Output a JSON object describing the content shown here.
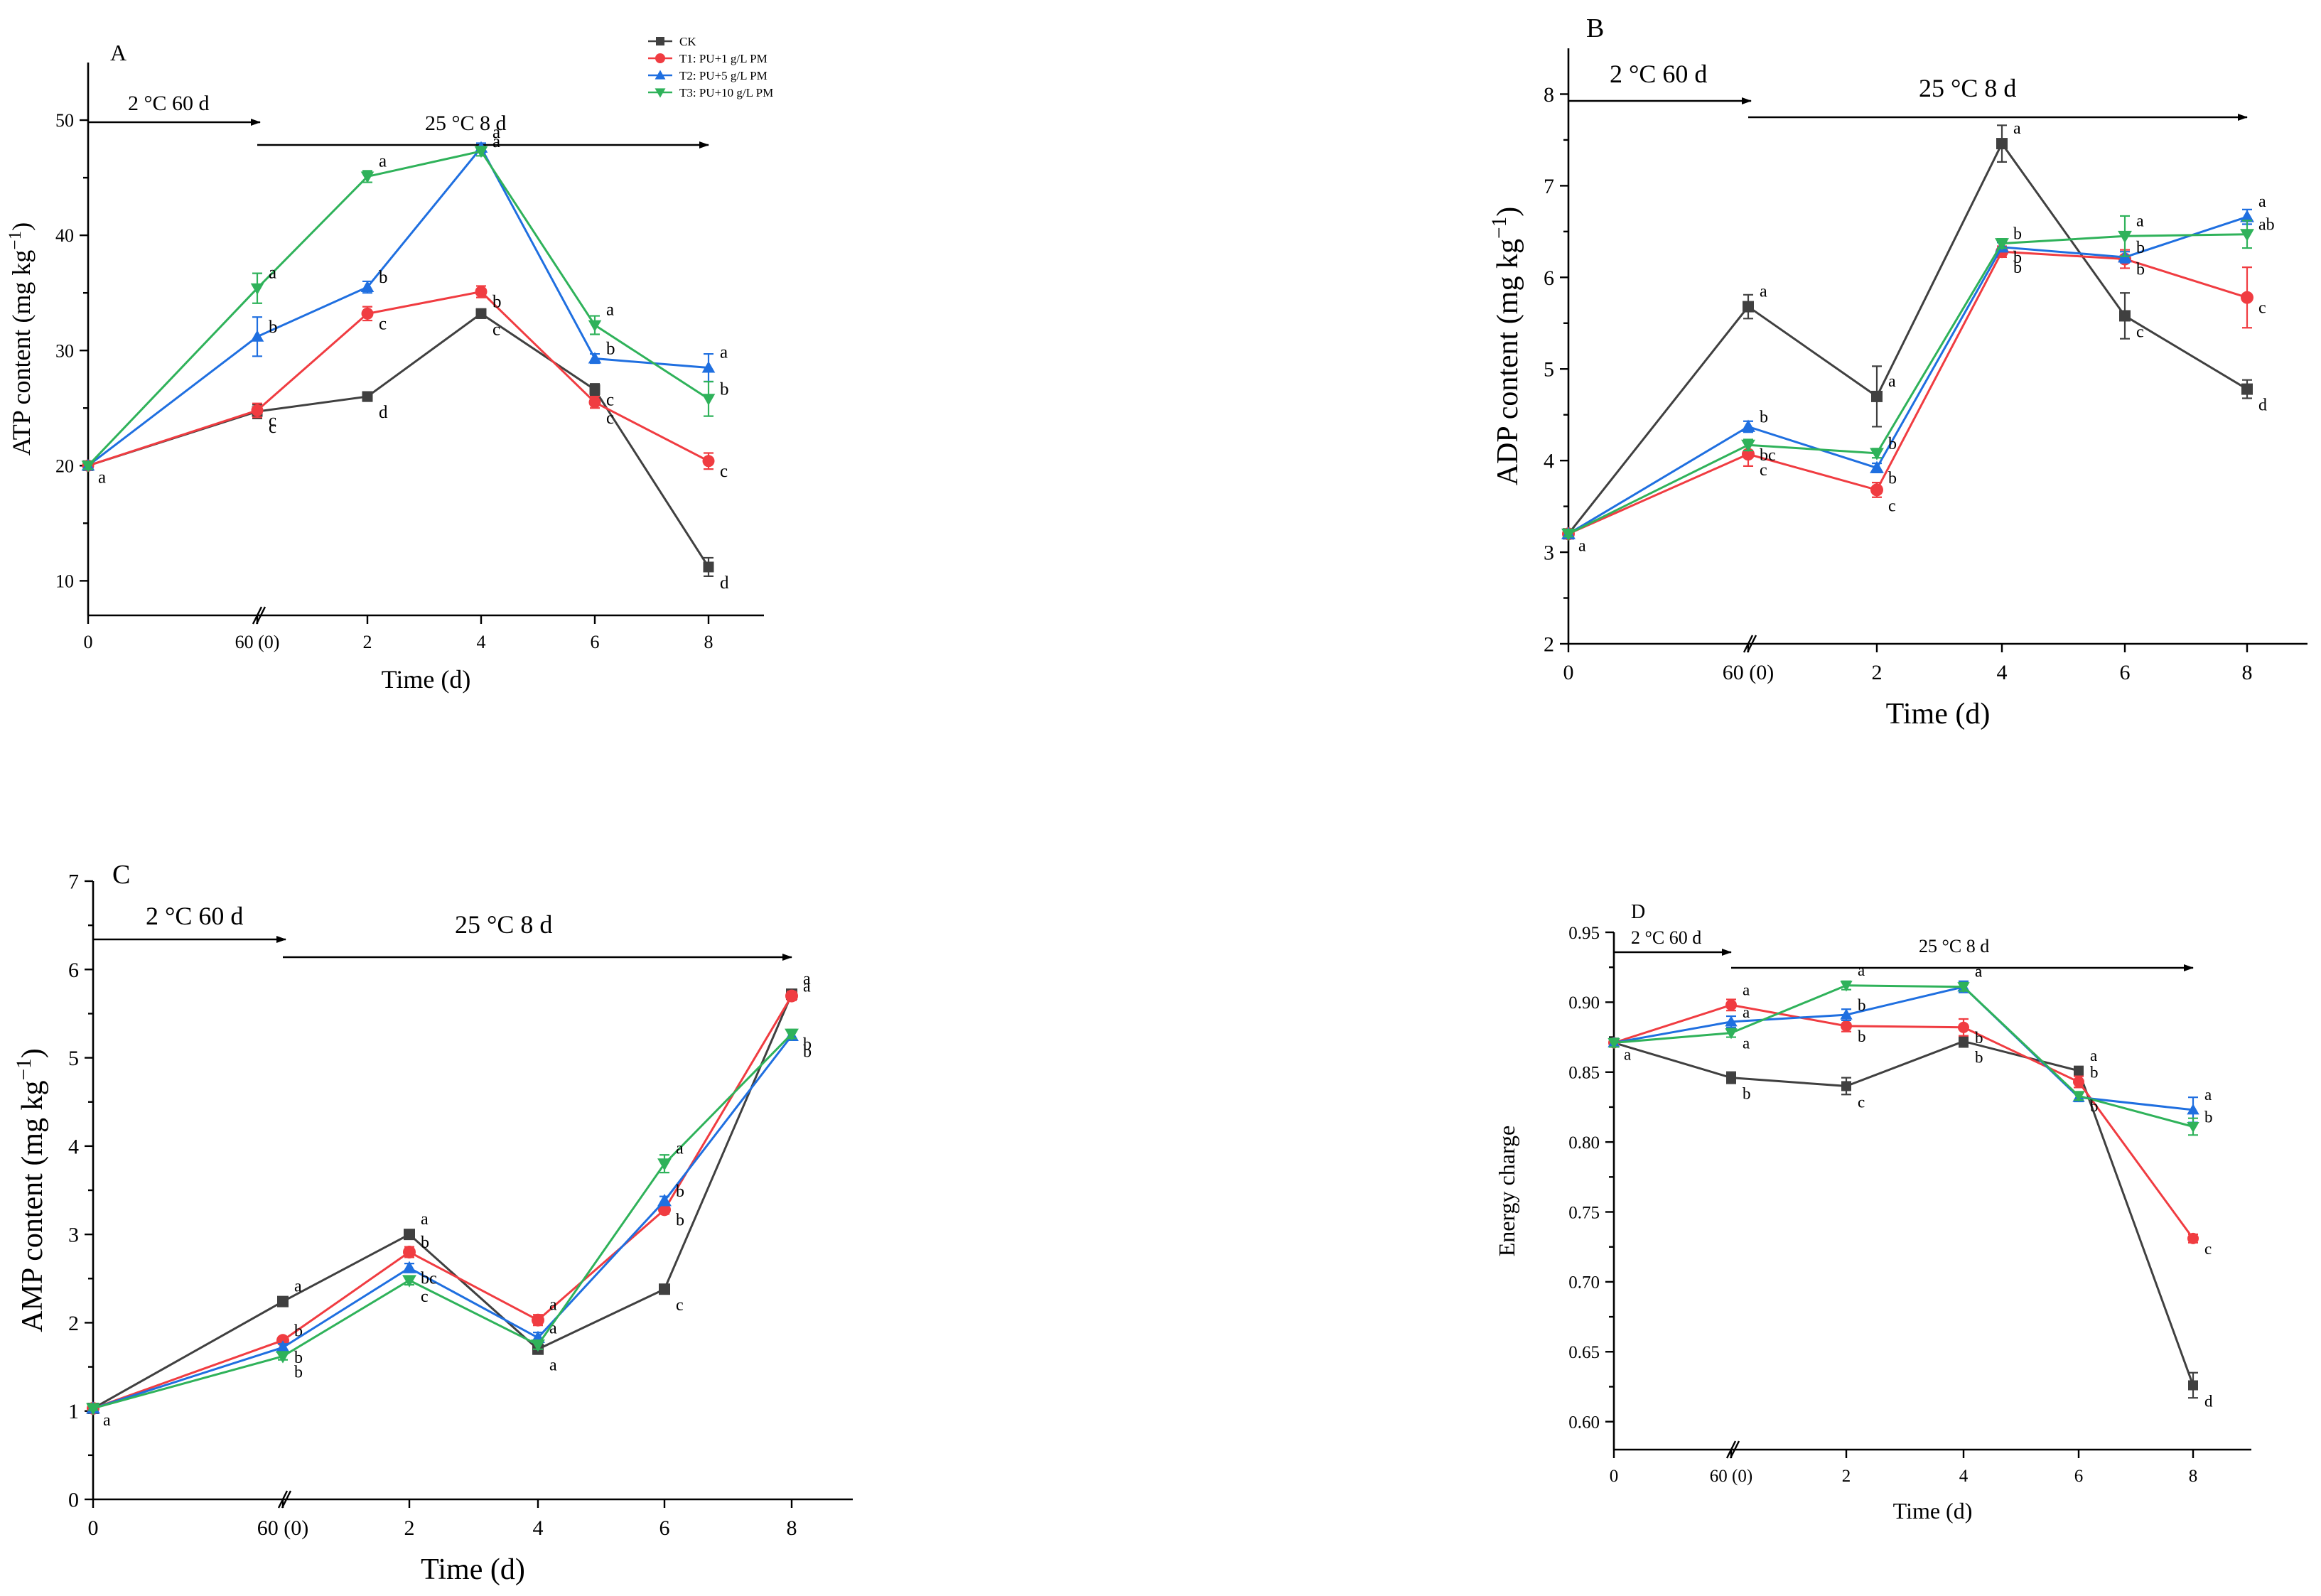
{
  "series_meta": [
    {
      "key": "ck",
      "name": "CK",
      "color": "#404040",
      "marker": "square"
    },
    {
      "key": "t1",
      "name": "T1: PU+1 g/L PM",
      "color": "#f03c41",
      "marker": "circle"
    },
    {
      "key": "t2",
      "name": "T2: PU+5 g/L PM",
      "color": "#1f6fe0",
      "marker": "triangle-up"
    },
    {
      "key": "t3",
      "name": "T3: PU+10 g/L PM",
      "color": "#2fb25a",
      "marker": "triangle-down"
    }
  ],
  "phase_labels": {
    "cold": "2 °C 60 d",
    "warm": "25 °C 8 d"
  },
  "chart_data": [
    {
      "panel": "A",
      "type": "line",
      "title": "",
      "xlabel": "Time (d)",
      "ylabel": "ATP content (mg kg",
      "ylabel_sup": "−1",
      "ylabel_close": ")",
      "categories": [
        "0",
        "60 (0)",
        "2",
        "4",
        "6",
        "8"
      ],
      "ylim": [
        7,
        55
      ],
      "yticks": [
        10,
        20,
        30,
        40,
        50
      ],
      "series": [
        {
          "key": "ck",
          "values": [
            20.0,
            24.7,
            26.0,
            33.2,
            26.6,
            11.2
          ],
          "err": [
            0.3,
            0.6,
            0.4,
            0.4,
            0.5,
            0.8
          ],
          "letters": [
            "a",
            "c",
            "d",
            "c",
            "c",
            "d"
          ]
        },
        {
          "key": "t1",
          "values": [
            20.0,
            24.8,
            33.2,
            35.1,
            25.5,
            20.4
          ],
          "err": [
            0.3,
            0.6,
            0.6,
            0.5,
            0.5,
            0.7
          ],
          "letters": [
            "",
            "c",
            "c",
            "b",
            "c",
            "c"
          ]
        },
        {
          "key": "t2",
          "values": [
            20.0,
            31.2,
            35.5,
            47.6,
            29.3,
            28.5
          ],
          "err": [
            0.3,
            1.7,
            0.5,
            0.4,
            0.4,
            1.2
          ],
          "letters": [
            "",
            "b",
            "b",
            "a",
            "b",
            "a"
          ]
        },
        {
          "key": "t3",
          "values": [
            20.0,
            35.4,
            45.1,
            47.3,
            32.2,
            25.8
          ],
          "err": [
            0.3,
            1.3,
            0.5,
            0.4,
            0.8,
            1.5
          ],
          "letters": [
            "",
            "a",
            "a",
            "a",
            "a",
            "b"
          ]
        }
      ]
    },
    {
      "panel": "B",
      "type": "line",
      "title": "",
      "xlabel": "Time (d)",
      "ylabel": "ADP content (mg kg",
      "ylabel_sup": "−1",
      "ylabel_close": ")",
      "categories": [
        "0",
        "60 (0)",
        "2",
        "4",
        "6",
        "8"
      ],
      "ylim": [
        2,
        8.5
      ],
      "yticks": [
        2,
        3,
        4,
        5,
        6,
        7,
        8
      ],
      "series": [
        {
          "key": "ck",
          "values": [
            3.2,
            5.68,
            4.7,
            7.46,
            5.58,
            4.78
          ],
          "err": [
            0.03,
            0.13,
            0.33,
            0.2,
            0.25,
            0.1
          ],
          "letters": [
            "a",
            "a",
            "a",
            "a",
            "c",
            "d"
          ]
        },
        {
          "key": "t1",
          "values": [
            3.2,
            4.07,
            3.68,
            6.28,
            6.2,
            5.78
          ],
          "err": [
            0.03,
            0.13,
            0.08,
            0.06,
            0.1,
            0.33
          ],
          "letters": [
            "",
            "c",
            "c",
            "b",
            "b",
            "c"
          ]
        },
        {
          "key": "t2",
          "values": [
            3.2,
            4.37,
            3.92,
            6.33,
            6.22,
            6.66
          ],
          "err": [
            0.03,
            0.06,
            0.05,
            0.05,
            0.06,
            0.08
          ],
          "letters": [
            "",
            "b",
            "b",
            "b",
            "b",
            "a"
          ]
        },
        {
          "key": "t3",
          "values": [
            3.2,
            4.17,
            4.08,
            6.37,
            6.45,
            6.47
          ],
          "err": [
            0.03,
            0.06,
            0.05,
            0.05,
            0.22,
            0.15
          ],
          "letters": [
            "",
            "bc",
            "b",
            "b",
            "a",
            "ab"
          ]
        }
      ]
    },
    {
      "panel": "C",
      "type": "line",
      "title": "",
      "xlabel": "Time (d)",
      "ylabel": "AMP content (mg kg",
      "ylabel_sup": "−1",
      "ylabel_close": ")",
      "categories": [
        "0",
        "60 (0)",
        "2",
        "4",
        "6",
        "8"
      ],
      "ylim": [
        0,
        7
      ],
      "yticks": [
        0,
        1,
        2,
        3,
        4,
        5,
        6,
        7
      ],
      "series": [
        {
          "key": "ck",
          "values": [
            1.03,
            2.24,
            3.0,
            1.7,
            2.38,
            5.72
          ],
          "err": [
            0.02,
            0.04,
            0.04,
            0.05,
            0.05,
            0.05
          ],
          "letters": [
            "a",
            "a",
            "a",
            "a",
            "c",
            "a"
          ]
        },
        {
          "key": "t1",
          "values": [
            1.03,
            1.8,
            2.8,
            2.03,
            3.28,
            5.7
          ],
          "err": [
            0.02,
            0.04,
            0.06,
            0.06,
            0.05,
            0.05
          ],
          "letters": [
            "",
            "b",
            "b",
            "a",
            "b",
            "a"
          ]
        },
        {
          "key": "t2",
          "values": [
            1.03,
            1.72,
            2.62,
            1.83,
            3.38,
            5.25
          ],
          "err": [
            0.02,
            0.04,
            0.05,
            0.06,
            0.05,
            0.05
          ],
          "letters": [
            "",
            "b",
            "bc",
            "a",
            "b",
            "b"
          ]
        },
        {
          "key": "t3",
          "values": [
            1.03,
            1.62,
            2.48,
            1.75,
            3.8,
            5.27
          ],
          "err": [
            0.02,
            0.04,
            0.05,
            0.05,
            0.1,
            0.05
          ],
          "letters": [
            "",
            "b",
            "c",
            "",
            "a",
            "b"
          ]
        }
      ]
    },
    {
      "panel": "D",
      "type": "line",
      "title": "",
      "xlabel": "Time (d)",
      "ylabel": "Energy charge",
      "ylabel_sup": "",
      "ylabel_close": "",
      "categories": [
        "0",
        "60 (0)",
        "2",
        "4",
        "6",
        "8"
      ],
      "ylim": [
        0.58,
        0.95
      ],
      "yticks": [
        0.6,
        0.65,
        0.7,
        0.75,
        0.8,
        0.85,
        0.9,
        0.95
      ],
      "series": [
        {
          "key": "ck",
          "values": [
            0.871,
            0.846,
            0.84,
            0.872,
            0.851,
            0.626
          ],
          "err": [
            0.003,
            0.004,
            0.006,
            0.004,
            0.003,
            0.009
          ],
          "letters": [
            "",
            "b",
            "c",
            "b",
            "a",
            "d"
          ]
        },
        {
          "key": "t1",
          "values": [
            0.871,
            0.898,
            0.883,
            0.882,
            0.843,
            0.731
          ],
          "err": [
            0.003,
            0.004,
            0.004,
            0.006,
            0.004,
            0.003
          ],
          "letters": [
            "",
            "a",
            "b",
            "b",
            "b",
            "c"
          ]
        },
        {
          "key": "t2",
          "values": [
            0.871,
            0.886,
            0.891,
            0.911,
            0.832,
            0.823
          ],
          "err": [
            0.003,
            0.004,
            0.004,
            0.004,
            0.003,
            0.009
          ],
          "letters": [
            "a",
            "a",
            "b",
            "a",
            "",
            "a"
          ]
        },
        {
          "key": "t3",
          "values": [
            0.871,
            0.878,
            0.912,
            0.911,
            0.833,
            0.811
          ],
          "err": [
            0.003,
            0.003,
            0.003,
            0.003,
            0.003,
            0.006
          ],
          "letters": [
            "",
            "a",
            "a",
            "a",
            "b",
            "b"
          ]
        }
      ]
    }
  ]
}
